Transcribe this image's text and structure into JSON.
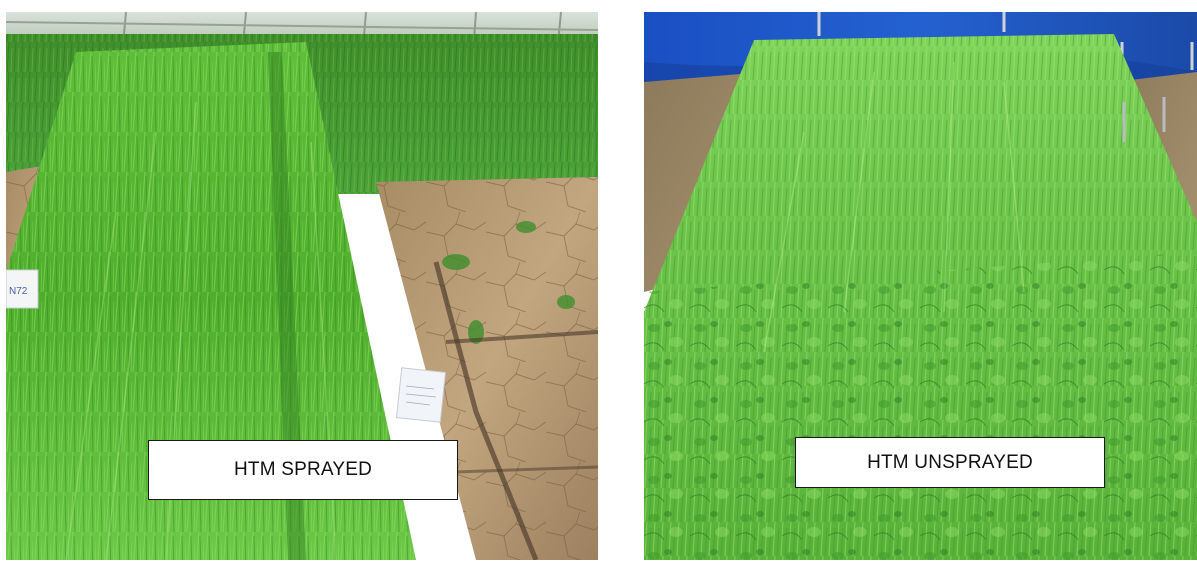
{
  "panels": [
    {
      "caption": "HTM SPRAYED",
      "marker_label": "N72"
    },
    {
      "caption": "HTM UNSPRAYED"
    }
  ],
  "colors": {
    "grass_light": "#7ed957",
    "grass_mid": "#4caf2f",
    "grass_dark": "#2e7d1f",
    "soil": "#b89a72",
    "tarp_blue": "#1f4fb8",
    "caption_border": "#1a1a1a"
  }
}
